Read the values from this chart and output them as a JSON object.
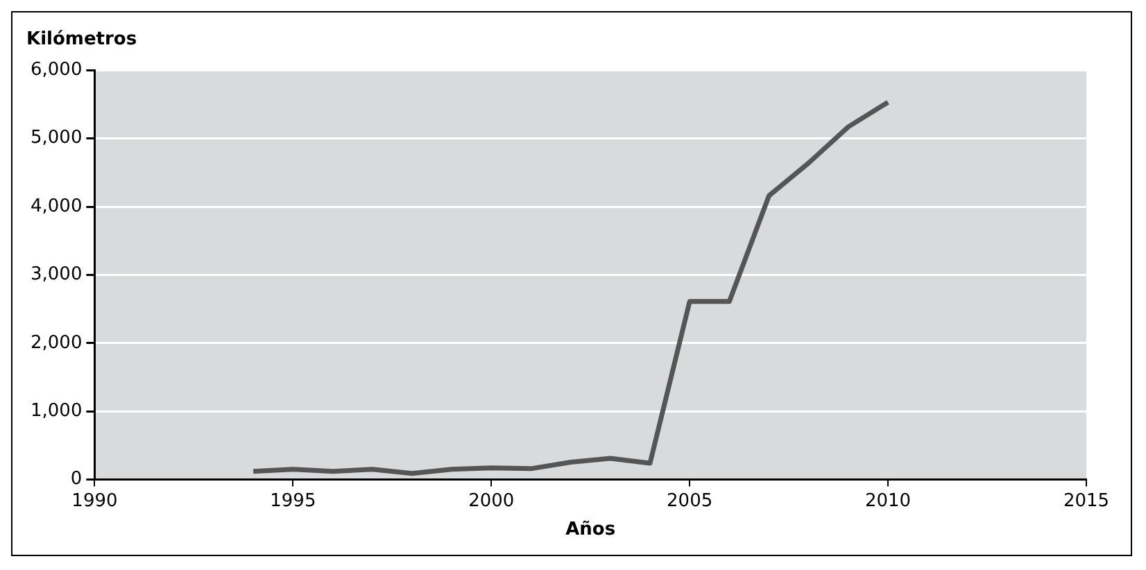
{
  "chart_data": {
    "type": "line",
    "ylabel": "Kilómetros",
    "xlabel": "Años",
    "x": [
      1994,
      1995,
      1996,
      1997,
      1998,
      1999,
      2000,
      2001,
      2002,
      2003,
      2004,
      2005,
      2006,
      2007,
      2008,
      2009,
      2010
    ],
    "series": [
      {
        "color": "#555555",
        "values": [
          120,
          150,
          120,
          150,
          90,
          150,
          170,
          160,
          255,
          310,
          240,
          2610,
          2610,
          4160,
          4640,
          5170,
          5530
        ]
      }
    ],
    "xlim": [
      1990,
      2015
    ],
    "xticks": [
      1990,
      1995,
      2000,
      2005,
      2010,
      2015
    ],
    "ylim": [
      0,
      6000
    ],
    "yticks": [
      {
        "value": 0,
        "label": "0"
      },
      {
        "value": 1000,
        "label": "1,000"
      },
      {
        "value": 2000,
        "label": "2,000"
      },
      {
        "value": 3000,
        "label": "3,000"
      },
      {
        "value": 4000,
        "label": "4,000"
      },
      {
        "value": 5000,
        "label": "5,000"
      },
      {
        "value": 6000,
        "label": "6,000"
      }
    ],
    "grid": "y",
    "legend": false,
    "marker": "none",
    "line_style": "solid"
  }
}
